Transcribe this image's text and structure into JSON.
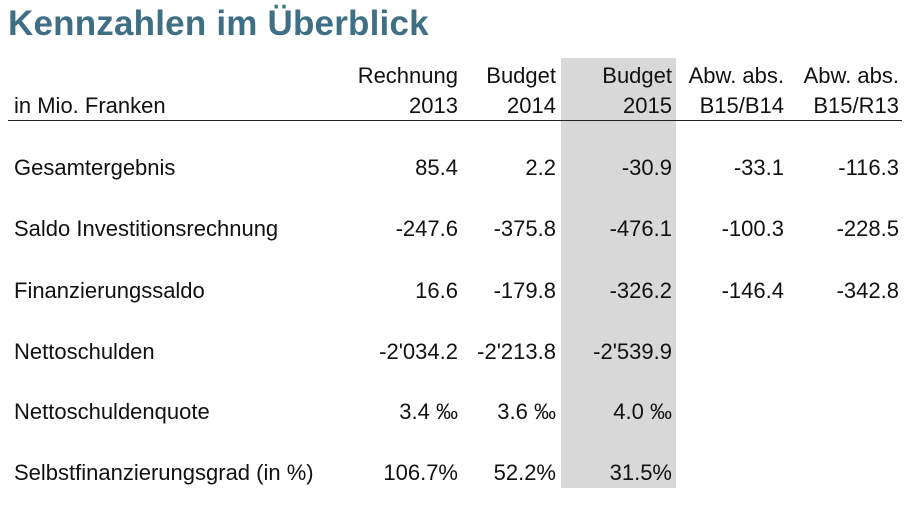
{
  "title": "Kennzahlen im Überblick",
  "unit_label": "in Mio. Franken",
  "columns": [
    {
      "line1": "Rechnung",
      "line2": "2013"
    },
    {
      "line1": "Budget",
      "line2": "2014"
    },
    {
      "line1": "Budget",
      "line2": "2015"
    },
    {
      "line1": "Abw. abs.",
      "line2": "B15/B14"
    },
    {
      "line1": "Abw. abs.",
      "line2": "B15/R13"
    }
  ],
  "highlight_color": "#d8d8d8",
  "title_color": "#3f6f84",
  "rows": [
    {
      "label": "Gesamtergebnis",
      "values": [
        "85.4",
        "2.2",
        "-30.9",
        "-33.1",
        "-116.3"
      ]
    },
    {
      "label": "Saldo Investitionsrechnung",
      "values": [
        "-247.6",
        "-375.8",
        "-476.1",
        "-100.3",
        "-228.5"
      ]
    },
    {
      "label": "Finanzierungssaldo",
      "values": [
        "16.6",
        "-179.8",
        "-326.2",
        "-146.4",
        "-342.8"
      ]
    },
    {
      "label": "Nettoschulden",
      "values": [
        "-2'034.2",
        "-2'213.8",
        "-2'539.9",
        "",
        ""
      ]
    },
    {
      "label": "Nettoschuldenquote",
      "values": [
        "3.4 ‰",
        "3.6 ‰",
        "4.0 ‰",
        "",
        ""
      ]
    },
    {
      "label": "Selbstfinanzierungsgrad (in %)",
      "values": [
        "106.7%",
        "52.2%",
        "31.5%",
        "",
        ""
      ]
    }
  ]
}
